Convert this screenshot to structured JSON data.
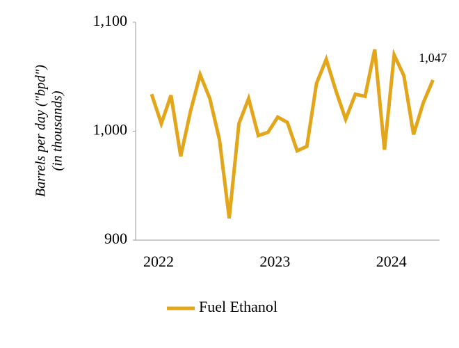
{
  "chart_data": {
    "type": "line",
    "y_label": [
      "Barrels per day (\"bpd\")",
      "(in thousands)"
    ],
    "categories": [
      "2022",
      null,
      null,
      null,
      null,
      null,
      null,
      null,
      null,
      null,
      null,
      null,
      "2023",
      null,
      null,
      null,
      null,
      null,
      null,
      null,
      null,
      null,
      null,
      null,
      "2024",
      null,
      null,
      null,
      null,
      null
    ],
    "series": [
      {
        "name": "Fuel Ethanol",
        "color": "#e3a51a",
        "values": [
          1034,
          1007,
          1033,
          977,
          1018,
          1052,
          1030,
          992,
          920,
          1007,
          1030,
          996,
          999,
          1013,
          1008,
          982,
          986,
          1044,
          1066,
          1037,
          1011,
          1034,
          1032,
          1075,
          983,
          1070,
          1051,
          997,
          1026,
          1047
        ],
        "value_labels": [
          null,
          null,
          null,
          null,
          null,
          null,
          null,
          null,
          null,
          null,
          null,
          null,
          null,
          null,
          null,
          null,
          null,
          null,
          null,
          null,
          null,
          null,
          null,
          null,
          null,
          null,
          null,
          null,
          null,
          "1,047"
        ]
      }
    ],
    "ylim": [
      900,
      1100
    ],
    "yticks": [
      {
        "value": 900,
        "label": "900"
      },
      {
        "value": 1000,
        "label": "1,000"
      },
      {
        "value": 1100,
        "label": "1,100"
      }
    ],
    "grid": false
  }
}
